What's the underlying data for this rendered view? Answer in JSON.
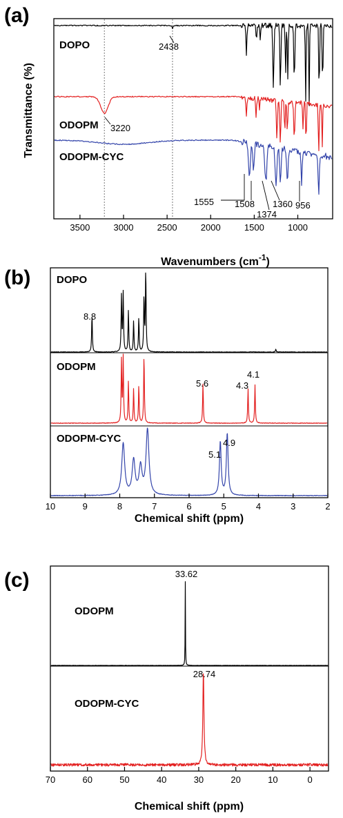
{
  "chart_data": [
    {
      "panel": "(a)",
      "type": "line",
      "xlabel": "Wavenumbers (cm",
      "xlabel_sup": "-1",
      "xlabel_close": ")",
      "ylabel": "Transmittance (%)",
      "xlim": [
        3800,
        600
      ],
      "x_reversed": true,
      "xticks": [
        3500,
        3000,
        2500,
        2000,
        1500,
        1000
      ],
      "xtick_labels": [
        "3500",
        "3000",
        "2500",
        "2000",
        "1500",
        "1000"
      ],
      "guides": [
        3220,
        2438
      ],
      "series": [
        {
          "name": "DOPO",
          "color": "#000000",
          "peaks": [
            2438,
            1590,
            1475,
            1430,
            1280,
            1200,
            1140,
            1115,
            1040,
            910,
            870,
            755,
            715
          ]
        },
        {
          "name": "ODOPM",
          "color": "#e32020",
          "peaks": [
            3220,
            1590,
            1480,
            1440,
            1240,
            1200,
            1150,
            1120,
            1040,
            940,
            905,
            760,
            720
          ]
        },
        {
          "name": "ODOPM-CYC",
          "color": "#3344aa",
          "peaks": [
            1555,
            1508,
            1374,
            1360,
            1250,
            1200,
            1120,
            956,
            760
          ]
        }
      ],
      "annotations": [
        "2438",
        "3220",
        "1555",
        "1508",
        "1374",
        "1360",
        "956"
      ]
    },
    {
      "panel": "(b)",
      "type": "line",
      "xlabel": "Chemical shift (ppm)",
      "xlim": [
        10,
        2
      ],
      "x_reversed": true,
      "xticks": [
        10,
        9,
        8,
        7,
        6,
        5,
        4,
        3,
        2
      ],
      "xtick_labels": [
        "10",
        "9",
        "8",
        "7",
        "6",
        "5",
        "4",
        "3",
        "2"
      ],
      "series": [
        {
          "name": "DOPO",
          "color": "#000000",
          "peaks": [
            8.8,
            7.95,
            7.9,
            7.75,
            7.6,
            7.45,
            7.3,
            7.25,
            3.5
          ]
        },
        {
          "name": "ODOPM",
          "color": "#e32020",
          "peaks": [
            7.95,
            7.9,
            7.75,
            7.6,
            7.45,
            7.3,
            5.6,
            4.3,
            4.1
          ]
        },
        {
          "name": "ODOPM-CYC",
          "color": "#3344aa",
          "peaks": [
            7.9,
            7.6,
            7.4,
            7.2,
            5.1,
            4.9
          ]
        }
      ],
      "annotations": [
        "8.8",
        "5.6",
        "4.3",
        "4.1",
        "5.1",
        "4.9"
      ]
    },
    {
      "panel": "(c)",
      "type": "line",
      "xlabel": "Chemical shift (ppm)",
      "xlim": [
        70,
        -5
      ],
      "x_reversed": true,
      "xticks": [
        70,
        60,
        50,
        40,
        30,
        20,
        10,
        0
      ],
      "xtick_labels": [
        "70",
        "60",
        "50",
        "40",
        "30",
        "20",
        "10",
        "0"
      ],
      "series": [
        {
          "name": "ODOPM",
          "color": "#000000",
          "peaks": [
            33.62
          ]
        },
        {
          "name": "ODOPM-CYC",
          "color": "#e32020",
          "peaks": [
            28.74
          ]
        }
      ],
      "annotations": [
        "33.62",
        "28.74"
      ]
    }
  ]
}
